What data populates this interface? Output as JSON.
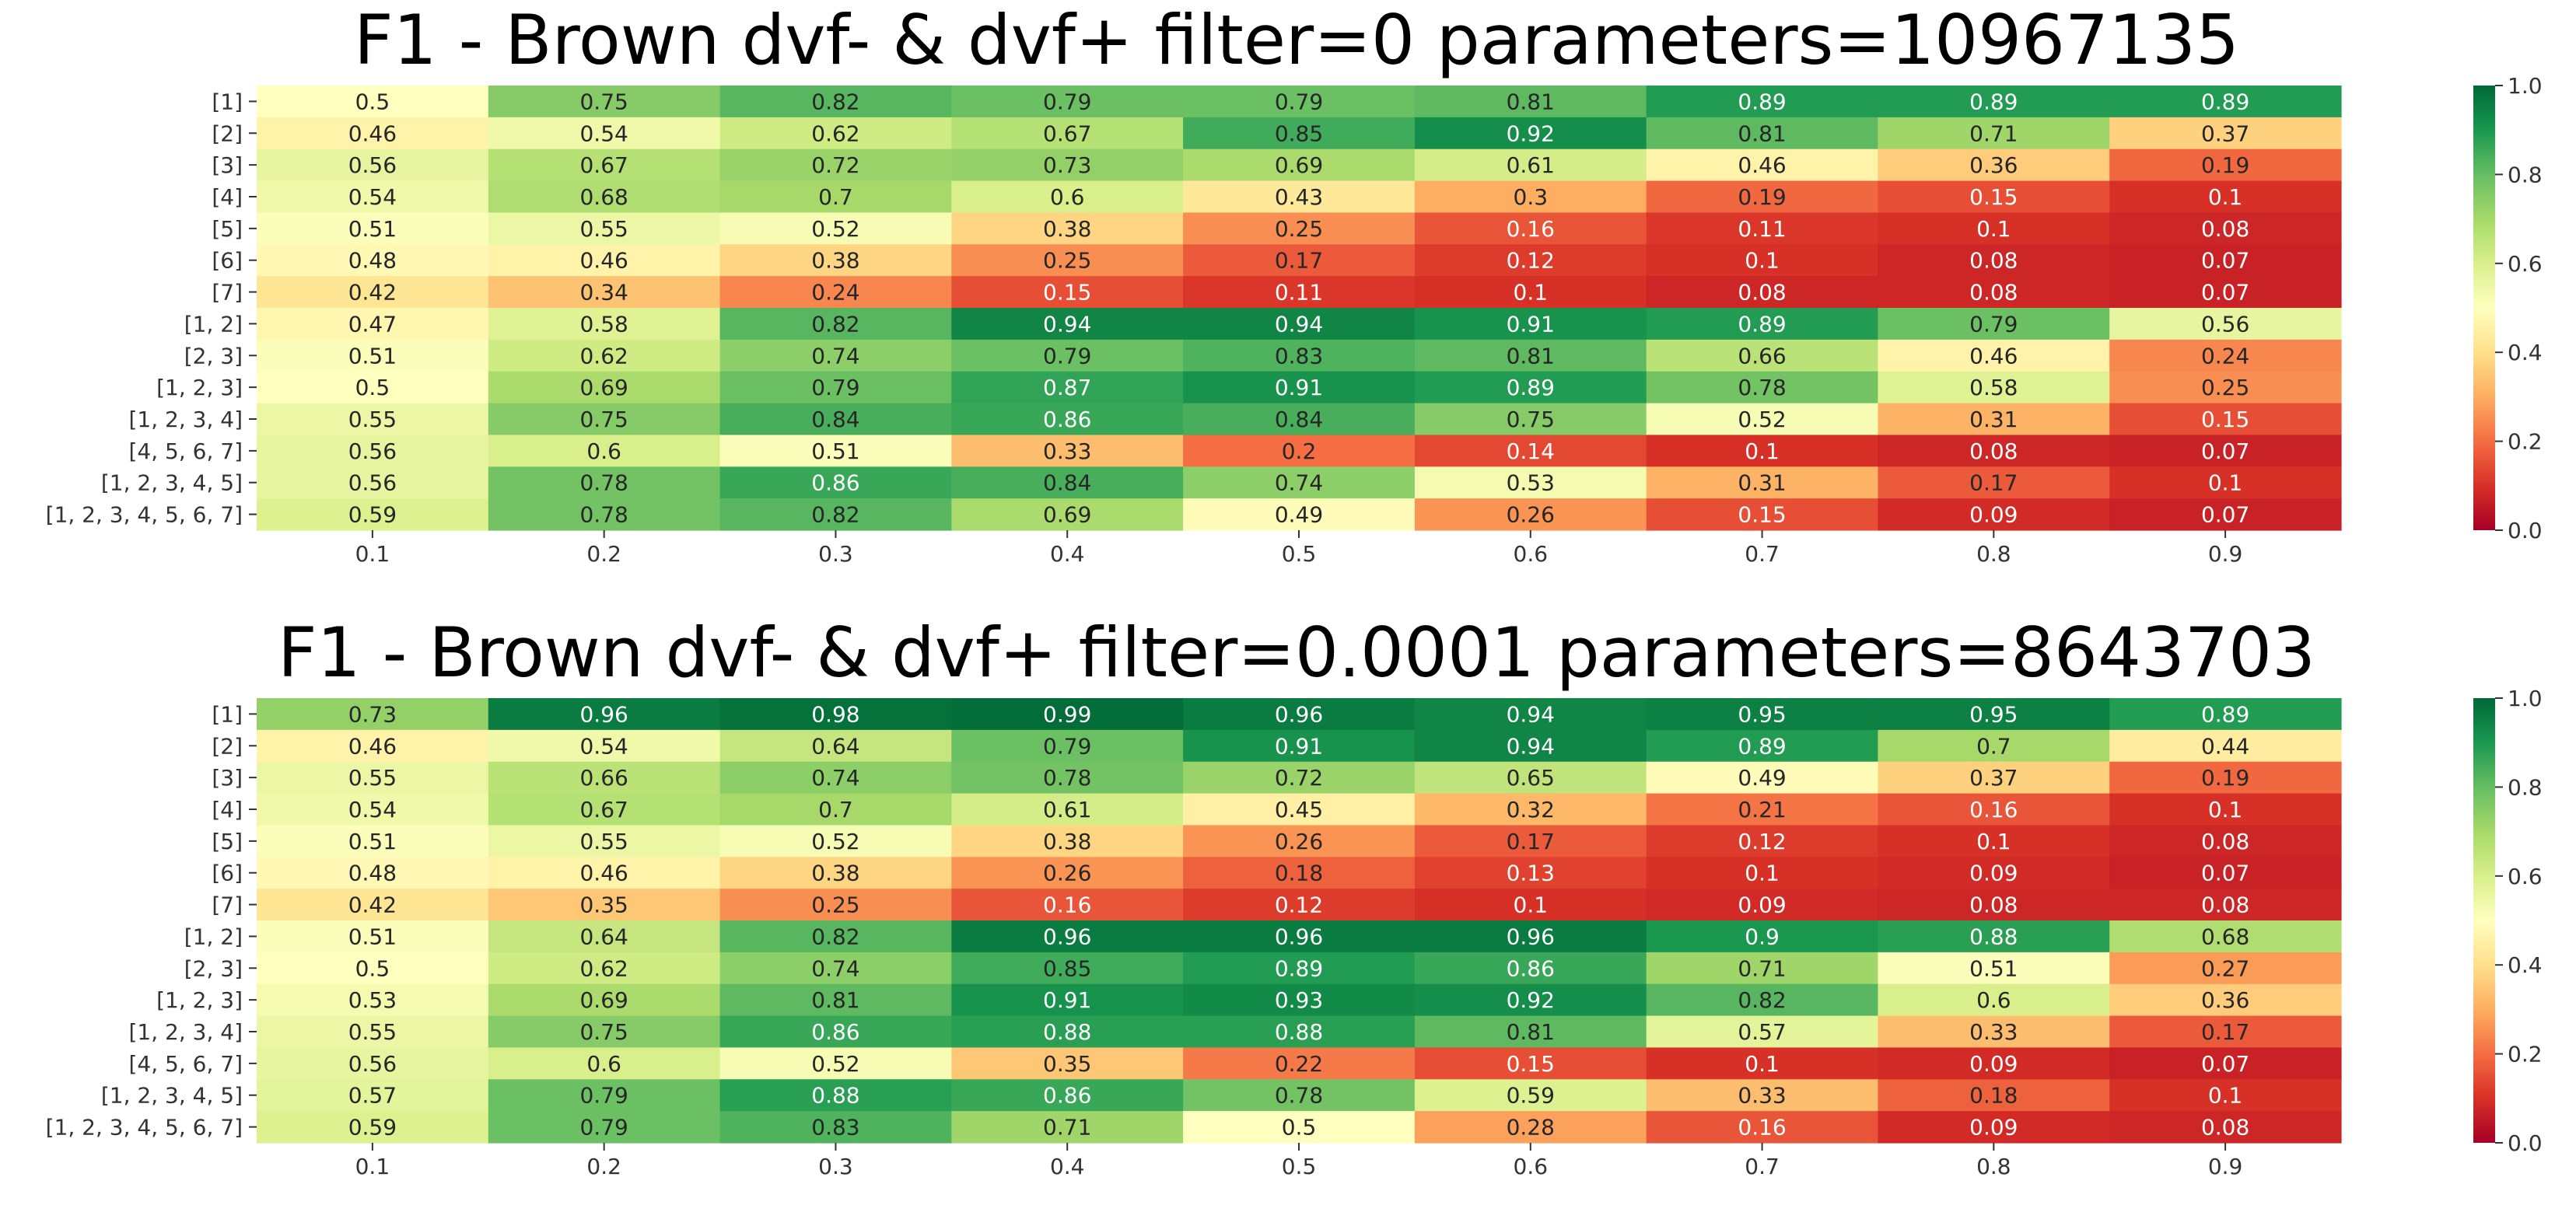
{
  "chart_data": [
    {
      "type": "heatmap",
      "title": "F1 - Brown dvf- & dvf+ filter=0 parameters=10967135",
      "x": [
        "0.1",
        "0.2",
        "0.3",
        "0.4",
        "0.5",
        "0.6",
        "0.7",
        "0.8",
        "0.9"
      ],
      "y": [
        "[1]",
        "[2]",
        "[3]",
        "[4]",
        "[5]",
        "[6]",
        "[7]",
        "[1, 2]",
        "[2, 3]",
        "[1, 2, 3]",
        "[1, 2, 3, 4]",
        "[4, 5, 6, 7]",
        "[1, 2, 3, 4, 5]",
        "[1, 2, 3, 4, 5, 6, 7]"
      ],
      "values": [
        [
          0.5,
          0.75,
          0.82,
          0.79,
          0.79,
          0.81,
          0.89,
          0.89,
          0.89
        ],
        [
          0.46,
          0.54,
          0.62,
          0.67,
          0.85,
          0.92,
          0.81,
          0.71,
          0.37
        ],
        [
          0.56,
          0.67,
          0.72,
          0.73,
          0.69,
          0.61,
          0.46,
          0.36,
          0.19
        ],
        [
          0.54,
          0.68,
          0.7,
          0.6,
          0.43,
          0.3,
          0.19,
          0.15,
          0.1
        ],
        [
          0.51,
          0.55,
          0.52,
          0.38,
          0.25,
          0.16,
          0.11,
          0.1,
          0.08
        ],
        [
          0.48,
          0.46,
          0.38,
          0.25,
          0.17,
          0.12,
          0.1,
          0.08,
          0.07
        ],
        [
          0.42,
          0.34,
          0.24,
          0.15,
          0.11,
          0.1,
          0.08,
          0.08,
          0.07
        ],
        [
          0.47,
          0.58,
          0.82,
          0.94,
          0.94,
          0.91,
          0.89,
          0.79,
          0.56
        ],
        [
          0.51,
          0.62,
          0.74,
          0.79,
          0.83,
          0.81,
          0.66,
          0.46,
          0.24
        ],
        [
          0.5,
          0.69,
          0.79,
          0.87,
          0.91,
          0.89,
          0.78,
          0.58,
          0.25
        ],
        [
          0.55,
          0.75,
          0.84,
          0.86,
          0.84,
          0.75,
          0.52,
          0.31,
          0.15
        ],
        [
          0.56,
          0.6,
          0.51,
          0.33,
          0.2,
          0.14,
          0.1,
          0.08,
          0.07
        ],
        [
          0.56,
          0.78,
          0.86,
          0.84,
          0.74,
          0.53,
          0.31,
          0.17,
          0.1
        ],
        [
          0.59,
          0.78,
          0.82,
          0.69,
          0.49,
          0.26,
          0.15,
          0.09,
          0.07
        ]
      ],
      "colorbar": {
        "range": [
          0.0,
          1.0
        ],
        "ticks": [
          "0.0",
          "0.2",
          "0.4",
          "0.6",
          "0.8",
          "1.0"
        ],
        "colormap": "RdYlGn"
      }
    },
    {
      "type": "heatmap",
      "title": "F1 - Brown dvf- & dvf+ filter=0.0001 parameters=8643703",
      "x": [
        "0.1",
        "0.2",
        "0.3",
        "0.4",
        "0.5",
        "0.6",
        "0.7",
        "0.8",
        "0.9"
      ],
      "y": [
        "[1]",
        "[2]",
        "[3]",
        "[4]",
        "[5]",
        "[6]",
        "[7]",
        "[1, 2]",
        "[2, 3]",
        "[1, 2, 3]",
        "[1, 2, 3, 4]",
        "[4, 5, 6, 7]",
        "[1, 2, 3, 4, 5]",
        "[1, 2, 3, 4, 5, 6, 7]"
      ],
      "values": [
        [
          0.73,
          0.96,
          0.98,
          0.99,
          0.96,
          0.94,
          0.95,
          0.95,
          0.89
        ],
        [
          0.46,
          0.54,
          0.64,
          0.79,
          0.91,
          0.94,
          0.89,
          0.7,
          0.44
        ],
        [
          0.55,
          0.66,
          0.74,
          0.78,
          0.72,
          0.65,
          0.49,
          0.37,
          0.19
        ],
        [
          0.54,
          0.67,
          0.7,
          0.61,
          0.45,
          0.32,
          0.21,
          0.16,
          0.1
        ],
        [
          0.51,
          0.55,
          0.52,
          0.38,
          0.26,
          0.17,
          0.12,
          0.1,
          0.08
        ],
        [
          0.48,
          0.46,
          0.38,
          0.26,
          0.18,
          0.13,
          0.1,
          0.09,
          0.07
        ],
        [
          0.42,
          0.35,
          0.25,
          0.16,
          0.12,
          0.1,
          0.09,
          0.08,
          0.08
        ],
        [
          0.51,
          0.64,
          0.82,
          0.96,
          0.96,
          0.96,
          0.9,
          0.88,
          0.68
        ],
        [
          0.5,
          0.62,
          0.74,
          0.85,
          0.89,
          0.86,
          0.71,
          0.51,
          0.27
        ],
        [
          0.53,
          0.69,
          0.81,
          0.91,
          0.93,
          0.92,
          0.82,
          0.6,
          0.36
        ],
        [
          0.55,
          0.75,
          0.86,
          0.88,
          0.88,
          0.81,
          0.57,
          0.33,
          0.17
        ],
        [
          0.56,
          0.6,
          0.52,
          0.35,
          0.22,
          0.15,
          0.1,
          0.09,
          0.07
        ],
        [
          0.57,
          0.79,
          0.88,
          0.86,
          0.78,
          0.59,
          0.33,
          0.18,
          0.1
        ],
        [
          0.59,
          0.79,
          0.83,
          0.71,
          0.5,
          0.28,
          0.16,
          0.09,
          0.08
        ]
      ],
      "colorbar": {
        "range": [
          0.0,
          1.0
        ],
        "ticks": [
          "0.0",
          "0.2",
          "0.4",
          "0.6",
          "0.8",
          "1.0"
        ],
        "colormap": "RdYlGn"
      }
    }
  ]
}
